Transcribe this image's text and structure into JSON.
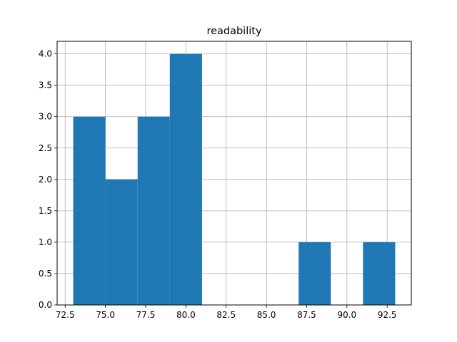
{
  "chart_data": {
    "type": "bar",
    "subtype": "histogram",
    "title": "readability",
    "xlabel": "",
    "ylabel": "",
    "bins": [
      {
        "start": 73.0,
        "end": 75.0,
        "count": 3
      },
      {
        "start": 75.0,
        "end": 77.0,
        "count": 2
      },
      {
        "start": 77.0,
        "end": 79.0,
        "count": 3
      },
      {
        "start": 79.0,
        "end": 81.0,
        "count": 4
      },
      {
        "start": 81.0,
        "end": 83.0,
        "count": 0
      },
      {
        "start": 83.0,
        "end": 85.0,
        "count": 0
      },
      {
        "start": 85.0,
        "end": 87.0,
        "count": 0
      },
      {
        "start": 87.0,
        "end": 89.0,
        "count": 1
      },
      {
        "start": 89.0,
        "end": 91.0,
        "count": 0
      },
      {
        "start": 91.0,
        "end": 93.0,
        "count": 1
      }
    ],
    "xlim": [
      72.0,
      94.0
    ],
    "ylim": [
      0,
      4.2
    ],
    "xticks": [
      "72.5",
      "75.0",
      "77.5",
      "80.0",
      "82.5",
      "85.0",
      "87.5",
      "90.0",
      "92.5"
    ],
    "yticks": [
      "0.0",
      "0.5",
      "1.0",
      "1.5",
      "2.0",
      "2.5",
      "3.0",
      "3.5",
      "4.0"
    ],
    "grid": true,
    "bar_color": "#1f77b4",
    "grid_color": "#b0b0b0"
  }
}
